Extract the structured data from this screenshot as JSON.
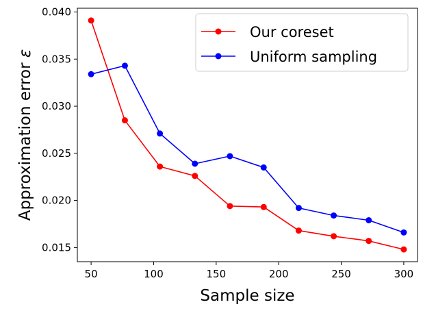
{
  "chart_data": {
    "type": "line",
    "title": "",
    "xlabel": "Sample size",
    "ylabel": "Approximation error ",
    "ylabel_symbol": "ε",
    "xlim": [
      39,
      311
    ],
    "ylim": [
      0.0135,
      0.0404
    ],
    "xticks": [
      50,
      100,
      150,
      200,
      250,
      300
    ],
    "xtick_labels": [
      "50",
      "100",
      "150",
      "200",
      "250",
      "300"
    ],
    "yticks": [
      0.015,
      0.02,
      0.025,
      0.03,
      0.035,
      0.04
    ],
    "ytick_labels": [
      "0.015",
      "0.020",
      "0.025",
      "0.030",
      "0.035",
      "0.040"
    ],
    "grid": false,
    "legend_position": "top-right",
    "x": [
      50,
      77,
      105,
      133,
      161,
      188,
      216,
      244,
      272,
      300
    ],
    "series": [
      {
        "name": "Our coreset",
        "color": "#ff0000",
        "values": [
          0.0391,
          0.0285,
          0.0236,
          0.0226,
          0.0194,
          0.0193,
          0.0168,
          0.0162,
          0.0157,
          0.0148
        ]
      },
      {
        "name": "Uniform sampling",
        "color": "#0000ff",
        "values": [
          0.0334,
          0.0343,
          0.0271,
          0.0239,
          0.0247,
          0.0235,
          0.0192,
          0.0184,
          0.0179,
          0.0166
        ]
      }
    ]
  }
}
